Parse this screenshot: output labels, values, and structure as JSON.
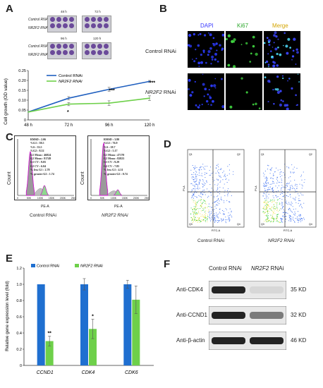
{
  "panels": [
    "A",
    "B",
    "C",
    "D",
    "E",
    "F"
  ],
  "panelA": {
    "plates": [
      {
        "time": "48 h",
        "rows": [
          "Control RNAi",
          "NR2F2 RNAi"
        ]
      },
      {
        "time": "72 h",
        "rows": [
          "",
          ""
        ]
      },
      {
        "time": "96 h",
        "rows": [
          "Control RNAi",
          "NR2F2 RNAi"
        ]
      },
      {
        "time": "120 h",
        "rows": [
          "",
          ""
        ]
      }
    ]
  },
  "panelB": {
    "columns": [
      "DAPI",
      "Ki67",
      "Merge"
    ],
    "rows": [
      {
        "label": "Control RNAi",
        "italic_prefix": ""
      },
      {
        "label": " RNAi",
        "italic_prefix": "NR2F2"
      }
    ],
    "colors": {
      "DAPI": "#3a3aff",
      "Ki67": "#2ea82e",
      "Merge": "#d4a500"
    }
  },
  "panelC": {
    "xlabel": "PE-A",
    "ylabel": "Count",
    "captions": [
      "Control RNAi",
      "NR2F2 RNAi"
    ],
    "stats_left": [
      "RMSD : 2.06",
      "%G1 : 58.5",
      "%S : 33.5",
      "%G2 : 8.52",
      "G1 Mean : 46824",
      "G2 Mean : 81749",
      "G1 CV : 9.05",
      "G2 CV : 6.04",
      "% less G1 : 2.78",
      "% greater G2 : 1.74"
    ],
    "stats_right": [
      "RMSD : 3.80",
      "%G1 : 76.9",
      "%S : 18.7",
      "%G2 : 5.17",
      "G1 Mean : 47170",
      "G2 Mean : 82823",
      "G1 CV : 9.29",
      "G2 CV : 7.85",
      "% less G1 : 4.31",
      "% greater G2 : 0.74"
    ],
    "xticks": [
      "0",
      "50K",
      "100K",
      "150K",
      "200K",
      "250K"
    ]
  },
  "panelD": {
    "xlabel": "FITC-A",
    "ylabel": "PI-A",
    "captions": [
      "Control RNAi",
      "NR2F2 RNAi"
    ],
    "quadrants": [
      "Q1",
      "Q2",
      "Q3",
      "Q4"
    ]
  },
  "panelF": {
    "header": [
      "Control RNAi",
      "NR2F2 RNAi"
    ],
    "bands": [
      {
        "label": "Anti-CDK4",
        "size": "35 KD",
        "control": 1.0,
        "knockdown": 0.18
      },
      {
        "label": "Anti-CCND1",
        "size": "32 KD",
        "control": 1.0,
        "knockdown": 0.6
      },
      {
        "label": "Anti-β-actin",
        "size": "46 KD",
        "control": 1.0,
        "knockdown": 1.0
      }
    ]
  },
  "chart_data": [
    {
      "type": "line",
      "panel": "A",
      "x": [
        "48 h",
        "72 h",
        "96 h",
        "120 h"
      ],
      "ylabel": "Cell growth (OD value)",
      "ylim": [
        0,
        0.25
      ],
      "yticks": [
        "0",
        "0.05",
        "0.10",
        "0.15",
        "0.20",
        "0.25"
      ],
      "series": [
        {
          "name": "Control RNAi",
          "values": [
            0.04,
            0.11,
            0.155,
            0.195
          ],
          "color": "#1f5fbf"
        },
        {
          "name": "NR2F2 RNAi",
          "values": [
            0.04,
            0.08,
            0.085,
            0.11
          ],
          "color": "#6ed04a"
        }
      ],
      "annotations": [
        "*",
        "***",
        "***"
      ],
      "legend": "top-left"
    },
    {
      "type": "bar",
      "panel": "E",
      "categories": [
        "CCND1",
        "CDK4",
        "CDK6"
      ],
      "ylabel": "Relative gene expression level (fold)",
      "ylim": [
        0,
        1.2
      ],
      "yticks": [
        "0",
        "0.2",
        "0.4",
        "0.6",
        "0.8",
        "1.0",
        "1.2"
      ],
      "series": [
        {
          "name": "Control RNAi",
          "values": [
            1.0,
            1.0,
            1.0
          ],
          "errors": [
            0.0,
            0.07,
            0.05
          ],
          "color": "#1f6fd0"
        },
        {
          "name": "NR2F2 RNAi",
          "values": [
            0.3,
            0.45,
            0.81
          ],
          "errors": [
            0.06,
            0.12,
            0.17
          ],
          "color": "#6ed04a"
        }
      ],
      "annotations": [
        "**",
        "*",
        ""
      ],
      "legend": "top-left"
    }
  ]
}
